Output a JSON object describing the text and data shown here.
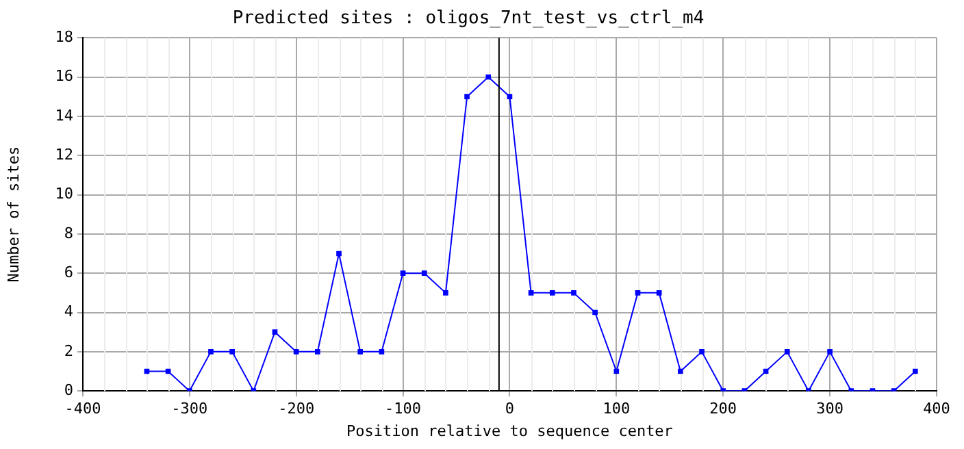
{
  "chart_data": {
    "type": "line",
    "title": "Predicted sites : oligos_7nt_test_vs_ctrl_m4",
    "xlabel": "Position relative to sequence center",
    "ylabel": "Number of sites",
    "x": [
      -340,
      -320,
      -300,
      -280,
      -260,
      -240,
      -220,
      -200,
      -180,
      -160,
      -140,
      -120,
      -100,
      -80,
      -60,
      -40,
      -20,
      0,
      20,
      40,
      60,
      80,
      100,
      120,
      140,
      160,
      180,
      200,
      220,
      240,
      260,
      280,
      300,
      320,
      340,
      360,
      380
    ],
    "series": [
      {
        "color": "#0000ff",
        "values": [
          1,
          1,
          0,
          2,
          2,
          0,
          3,
          2,
          2,
          7,
          2,
          2,
          6,
          6,
          5,
          15,
          16,
          15,
          5,
          5,
          5,
          4,
          1,
          5,
          5,
          1,
          2,
          0,
          0,
          1,
          2,
          0,
          2,
          0,
          0,
          0,
          1
        ]
      }
    ],
    "xlim": [
      -400,
      400
    ],
    "xticks": [
      -400,
      -300,
      -200,
      -100,
      0,
      100,
      200,
      300,
      400
    ],
    "ylim": [
      0,
      18
    ],
    "yticks": [
      0,
      2,
      4,
      6,
      8,
      10,
      12,
      14,
      16,
      18
    ],
    "ref_lines": [
      {
        "axis": "x",
        "value": -10,
        "color": "#000000"
      }
    ],
    "grid": true,
    "marker": "square",
    "line_style": "solid",
    "legend": false
  }
}
